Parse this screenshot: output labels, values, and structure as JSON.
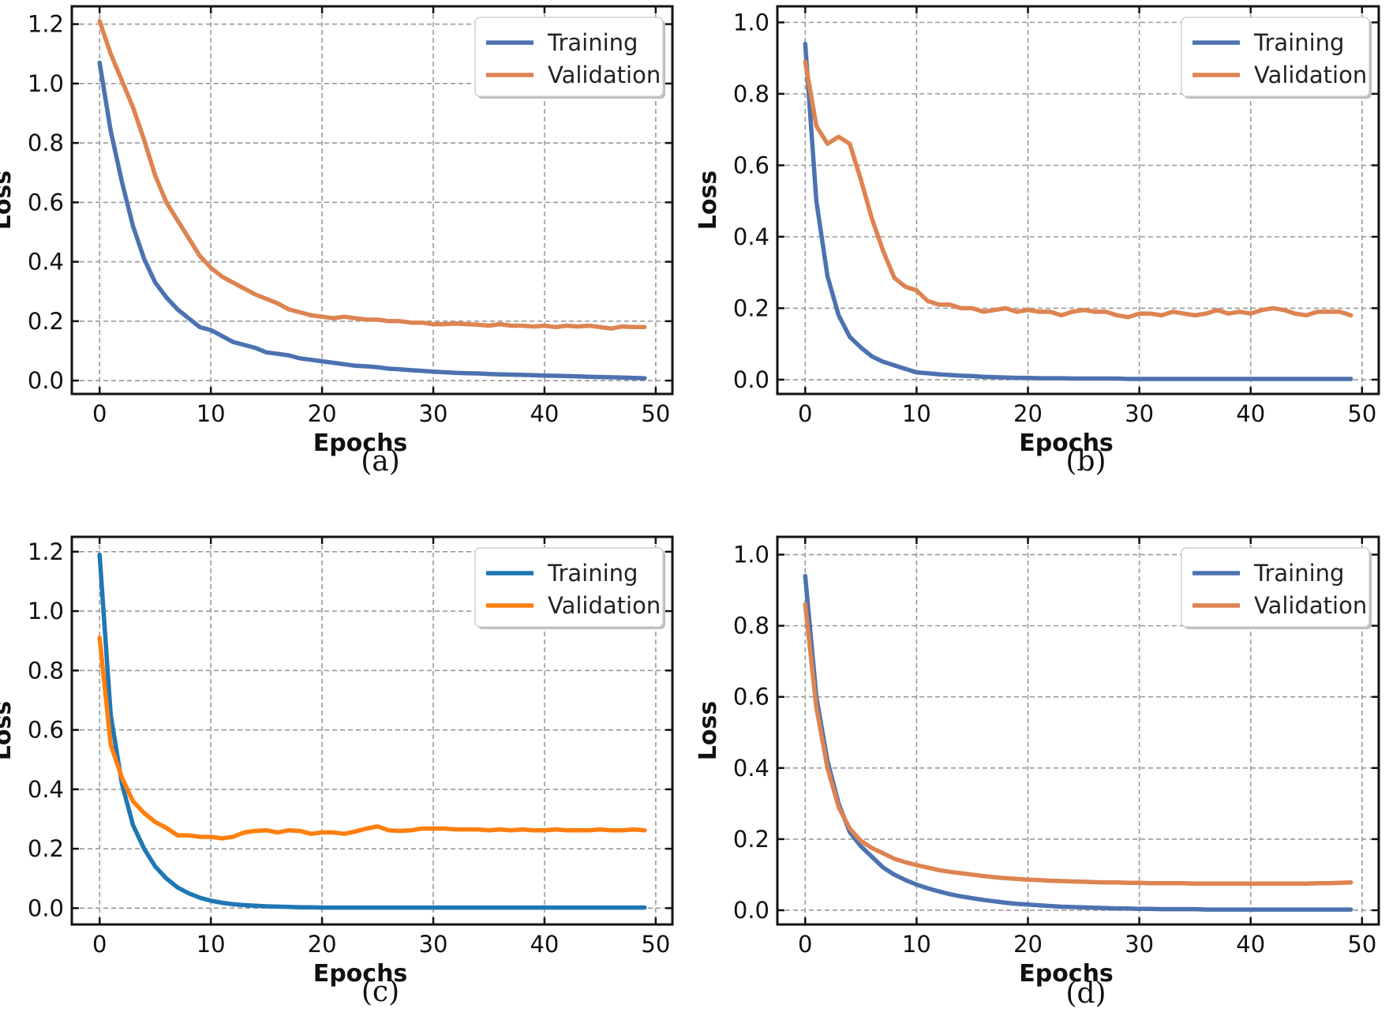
{
  "chart_data": [
    {
      "type": "line",
      "panel": "(a)",
      "xlabel": "Epochs",
      "ylabel": "Loss",
      "xlim": [
        -2.5,
        51.5
      ],
      "ylim": [
        -0.045,
        1.26
      ],
      "xticks": [
        0,
        10,
        20,
        30,
        40,
        50
      ],
      "xtick_labels": [
        "0",
        "10",
        "20",
        "30",
        "40",
        "50"
      ],
      "yticks": [
        0.0,
        0.2,
        0.4,
        0.6,
        0.8,
        1.0,
        1.2
      ],
      "ytick_labels": [
        "0.0",
        "0.2",
        "0.4",
        "0.6",
        "0.8",
        "1.0",
        "1.2"
      ],
      "grid": true,
      "legend_position": "top-right",
      "series": [
        {
          "name": "Training",
          "color": "#4c72b0",
          "x": [
            0,
            1,
            2,
            3,
            4,
            5,
            6,
            7,
            8,
            9,
            10,
            11,
            12,
            13,
            14,
            15,
            16,
            17,
            18,
            19,
            20,
            21,
            22,
            23,
            24,
            25,
            26,
            27,
            28,
            29,
            30,
            31,
            32,
            33,
            34,
            35,
            36,
            37,
            38,
            39,
            40,
            41,
            42,
            43,
            44,
            45,
            46,
            47,
            48,
            49
          ],
          "y": [
            1.07,
            0.84,
            0.67,
            0.52,
            0.41,
            0.33,
            0.28,
            0.24,
            0.21,
            0.18,
            0.17,
            0.15,
            0.13,
            0.12,
            0.11,
            0.095,
            0.09,
            0.085,
            0.075,
            0.07,
            0.065,
            0.06,
            0.055,
            0.05,
            0.048,
            0.045,
            0.04,
            0.038,
            0.035,
            0.033,
            0.03,
            0.028,
            0.026,
            0.025,
            0.024,
            0.022,
            0.021,
            0.02,
            0.019,
            0.018,
            0.017,
            0.016,
            0.015,
            0.014,
            0.013,
            0.012,
            0.011,
            0.01,
            0.009,
            0.008
          ]
        },
        {
          "name": "Validation",
          "color": "#dd8452",
          "x": [
            0,
            1,
            2,
            3,
            4,
            5,
            6,
            7,
            8,
            9,
            10,
            11,
            12,
            13,
            14,
            15,
            16,
            17,
            18,
            19,
            20,
            21,
            22,
            23,
            24,
            25,
            26,
            27,
            28,
            29,
            30,
            31,
            32,
            33,
            34,
            35,
            36,
            37,
            38,
            39,
            40,
            41,
            42,
            43,
            44,
            45,
            46,
            47,
            48,
            49
          ],
          "y": [
            1.21,
            1.1,
            1.01,
            0.92,
            0.81,
            0.69,
            0.6,
            0.54,
            0.48,
            0.42,
            0.38,
            0.35,
            0.33,
            0.31,
            0.29,
            0.275,
            0.26,
            0.24,
            0.23,
            0.22,
            0.215,
            0.21,
            0.215,
            0.21,
            0.205,
            0.205,
            0.2,
            0.2,
            0.195,
            0.195,
            0.19,
            0.19,
            0.192,
            0.19,
            0.188,
            0.185,
            0.19,
            0.185,
            0.185,
            0.182,
            0.185,
            0.18,
            0.185,
            0.182,
            0.185,
            0.18,
            0.175,
            0.182,
            0.18,
            0.18
          ]
        }
      ]
    },
    {
      "type": "line",
      "panel": "(b)",
      "xlabel": "Epochs",
      "ylabel": "Loss",
      "xlim": [
        -2.5,
        51.5
      ],
      "ylim": [
        -0.04,
        1.045
      ],
      "xticks": [
        0,
        10,
        20,
        30,
        40,
        50
      ],
      "xtick_labels": [
        "0",
        "10",
        "20",
        "30",
        "40",
        "50"
      ],
      "yticks": [
        0.0,
        0.2,
        0.4,
        0.6,
        0.8,
        1.0
      ],
      "ytick_labels": [
        "0.0",
        "0.2",
        "0.4",
        "0.6",
        "0.8",
        "1.0"
      ],
      "grid": true,
      "legend_position": "top-right",
      "series": [
        {
          "name": "Training",
          "color": "#4c72b0",
          "x": [
            0,
            1,
            2,
            3,
            4,
            5,
            6,
            7,
            8,
            9,
            10,
            11,
            12,
            13,
            14,
            15,
            16,
            17,
            18,
            19,
            20,
            21,
            22,
            23,
            24,
            25,
            26,
            27,
            28,
            29,
            30,
            31,
            32,
            33,
            34,
            35,
            36,
            37,
            38,
            39,
            40,
            41,
            42,
            43,
            44,
            45,
            46,
            47,
            48,
            49
          ],
          "y": [
            0.94,
            0.5,
            0.29,
            0.18,
            0.12,
            0.09,
            0.065,
            0.05,
            0.04,
            0.03,
            0.02,
            0.018,
            0.015,
            0.013,
            0.011,
            0.01,
            0.008,
            0.007,
            0.006,
            0.005,
            0.005,
            0.004,
            0.004,
            0.004,
            0.003,
            0.003,
            0.003,
            0.003,
            0.003,
            0.002,
            0.002,
            0.002,
            0.002,
            0.002,
            0.002,
            0.002,
            0.002,
            0.002,
            0.002,
            0.002,
            0.002,
            0.002,
            0.002,
            0.002,
            0.002,
            0.002,
            0.002,
            0.002,
            0.002,
            0.002
          ]
        },
        {
          "name": "Validation",
          "color": "#dd8452",
          "x": [
            0,
            1,
            2,
            3,
            4,
            5,
            6,
            7,
            8,
            9,
            10,
            11,
            12,
            13,
            14,
            15,
            16,
            17,
            18,
            19,
            20,
            21,
            22,
            23,
            24,
            25,
            26,
            27,
            28,
            29,
            30,
            31,
            32,
            33,
            34,
            35,
            36,
            37,
            38,
            39,
            40,
            41,
            42,
            43,
            44,
            45,
            46,
            47,
            48,
            49
          ],
          "y": [
            0.89,
            0.71,
            0.66,
            0.68,
            0.66,
            0.56,
            0.45,
            0.36,
            0.285,
            0.26,
            0.25,
            0.22,
            0.21,
            0.21,
            0.2,
            0.2,
            0.19,
            0.195,
            0.2,
            0.19,
            0.195,
            0.19,
            0.19,
            0.18,
            0.19,
            0.195,
            0.19,
            0.19,
            0.18,
            0.175,
            0.185,
            0.185,
            0.18,
            0.19,
            0.185,
            0.18,
            0.185,
            0.195,
            0.185,
            0.19,
            0.185,
            0.195,
            0.2,
            0.195,
            0.185,
            0.18,
            0.19,
            0.19,
            0.19,
            0.18
          ]
        }
      ]
    },
    {
      "type": "line",
      "panel": "(c)",
      "xlabel": "Epochs",
      "ylabel": "Loss",
      "xlim": [
        -2.5,
        51.5
      ],
      "ylim": [
        -0.055,
        1.25
      ],
      "xticks": [
        0,
        10,
        20,
        30,
        40,
        50
      ],
      "xtick_labels": [
        "0",
        "10",
        "20",
        "30",
        "40",
        "50"
      ],
      "yticks": [
        0.0,
        0.2,
        0.4,
        0.6,
        0.8,
        1.0,
        1.2
      ],
      "ytick_labels": [
        "0.0",
        "0.2",
        "0.4",
        "0.6",
        "0.8",
        "1.0",
        "1.2"
      ],
      "grid": true,
      "legend_position": "top-right",
      "series": [
        {
          "name": "Training",
          "color": "#1f77b4",
          "x": [
            0,
            1,
            2,
            3,
            4,
            5,
            6,
            7,
            8,
            9,
            10,
            11,
            12,
            13,
            14,
            15,
            16,
            17,
            18,
            19,
            20,
            21,
            22,
            23,
            24,
            25,
            26,
            27,
            28,
            29,
            30,
            31,
            32,
            33,
            34,
            35,
            36,
            37,
            38,
            39,
            40,
            41,
            42,
            43,
            44,
            45,
            46,
            47,
            48,
            49
          ],
          "y": [
            1.19,
            0.65,
            0.42,
            0.28,
            0.2,
            0.14,
            0.1,
            0.07,
            0.05,
            0.035,
            0.025,
            0.018,
            0.013,
            0.01,
            0.008,
            0.006,
            0.005,
            0.004,
            0.003,
            0.003,
            0.002,
            0.002,
            0.002,
            0.002,
            0.002,
            0.002,
            0.002,
            0.002,
            0.002,
            0.002,
            0.002,
            0.002,
            0.002,
            0.002,
            0.002,
            0.002,
            0.002,
            0.002,
            0.002,
            0.002,
            0.002,
            0.002,
            0.002,
            0.002,
            0.002,
            0.002,
            0.002,
            0.002,
            0.002,
            0.002
          ]
        },
        {
          "name": "Validation",
          "color": "#ff7f0e",
          "x": [
            0,
            1,
            2,
            3,
            4,
            5,
            6,
            7,
            8,
            9,
            10,
            11,
            12,
            13,
            14,
            15,
            16,
            17,
            18,
            19,
            20,
            21,
            22,
            23,
            24,
            25,
            26,
            27,
            28,
            29,
            30,
            31,
            32,
            33,
            34,
            35,
            36,
            37,
            38,
            39,
            40,
            41,
            42,
            43,
            44,
            45,
            46,
            47,
            48,
            49
          ],
          "y": [
            0.91,
            0.55,
            0.44,
            0.36,
            0.32,
            0.29,
            0.27,
            0.245,
            0.245,
            0.24,
            0.24,
            0.235,
            0.24,
            0.255,
            0.26,
            0.262,
            0.255,
            0.262,
            0.26,
            0.25,
            0.255,
            0.255,
            0.25,
            0.258,
            0.268,
            0.275,
            0.262,
            0.26,
            0.262,
            0.268,
            0.268,
            0.268,
            0.265,
            0.265,
            0.265,
            0.262,
            0.265,
            0.262,
            0.265,
            0.262,
            0.262,
            0.265,
            0.262,
            0.262,
            0.262,
            0.265,
            0.262,
            0.262,
            0.265,
            0.262
          ]
        }
      ]
    },
    {
      "type": "line",
      "panel": "(d)",
      "xlabel": "Epochs",
      "ylabel": "Loss",
      "xlim": [
        -2.5,
        51.5
      ],
      "ylim": [
        -0.04,
        1.05
      ],
      "xticks": [
        0,
        10,
        20,
        30,
        40,
        50
      ],
      "xtick_labels": [
        "0",
        "10",
        "20",
        "30",
        "40",
        "50"
      ],
      "yticks": [
        0.0,
        0.2,
        0.4,
        0.6,
        0.8,
        1.0
      ],
      "ytick_labels": [
        "0.0",
        "0.2",
        "0.4",
        "0.6",
        "0.8",
        "1.0"
      ],
      "grid": true,
      "legend_position": "top-right",
      "series": [
        {
          "name": "Training",
          "color": "#4c72b0",
          "x": [
            0,
            1,
            2,
            3,
            4,
            5,
            6,
            7,
            8,
            9,
            10,
            11,
            12,
            13,
            14,
            15,
            16,
            17,
            18,
            19,
            20,
            21,
            22,
            23,
            24,
            25,
            26,
            27,
            28,
            29,
            30,
            31,
            32,
            33,
            34,
            35,
            36,
            37,
            38,
            39,
            40,
            41,
            42,
            43,
            44,
            45,
            46,
            47,
            48,
            49
          ],
          "y": [
            0.94,
            0.6,
            0.42,
            0.3,
            0.22,
            0.18,
            0.15,
            0.12,
            0.1,
            0.085,
            0.072,
            0.062,
            0.053,
            0.045,
            0.039,
            0.034,
            0.029,
            0.025,
            0.021,
            0.018,
            0.016,
            0.014,
            0.012,
            0.01,
            0.009,
            0.008,
            0.007,
            0.006,
            0.005,
            0.005,
            0.004,
            0.004,
            0.003,
            0.003,
            0.003,
            0.003,
            0.002,
            0.002,
            0.002,
            0.002,
            0.002,
            0.002,
            0.002,
            0.002,
            0.002,
            0.002,
            0.002,
            0.002,
            0.002,
            0.002
          ]
        },
        {
          "name": "Validation",
          "color": "#dd8452",
          "x": [
            0,
            1,
            2,
            3,
            4,
            5,
            6,
            7,
            8,
            9,
            10,
            11,
            12,
            13,
            14,
            15,
            16,
            17,
            18,
            19,
            20,
            21,
            22,
            23,
            24,
            25,
            26,
            27,
            28,
            29,
            30,
            31,
            32,
            33,
            34,
            35,
            36,
            37,
            38,
            39,
            40,
            41,
            42,
            43,
            44,
            45,
            46,
            47,
            48,
            49
          ],
          "y": [
            0.86,
            0.57,
            0.4,
            0.29,
            0.23,
            0.195,
            0.175,
            0.16,
            0.145,
            0.135,
            0.127,
            0.12,
            0.113,
            0.108,
            0.104,
            0.1,
            0.096,
            0.093,
            0.09,
            0.088,
            0.086,
            0.085,
            0.083,
            0.082,
            0.081,
            0.08,
            0.079,
            0.078,
            0.078,
            0.077,
            0.077,
            0.076,
            0.076,
            0.076,
            0.076,
            0.075,
            0.075,
            0.075,
            0.075,
            0.075,
            0.075,
            0.075,
            0.075,
            0.075,
            0.075,
            0.075,
            0.076,
            0.076,
            0.077,
            0.078
          ]
        }
      ]
    }
  ]
}
